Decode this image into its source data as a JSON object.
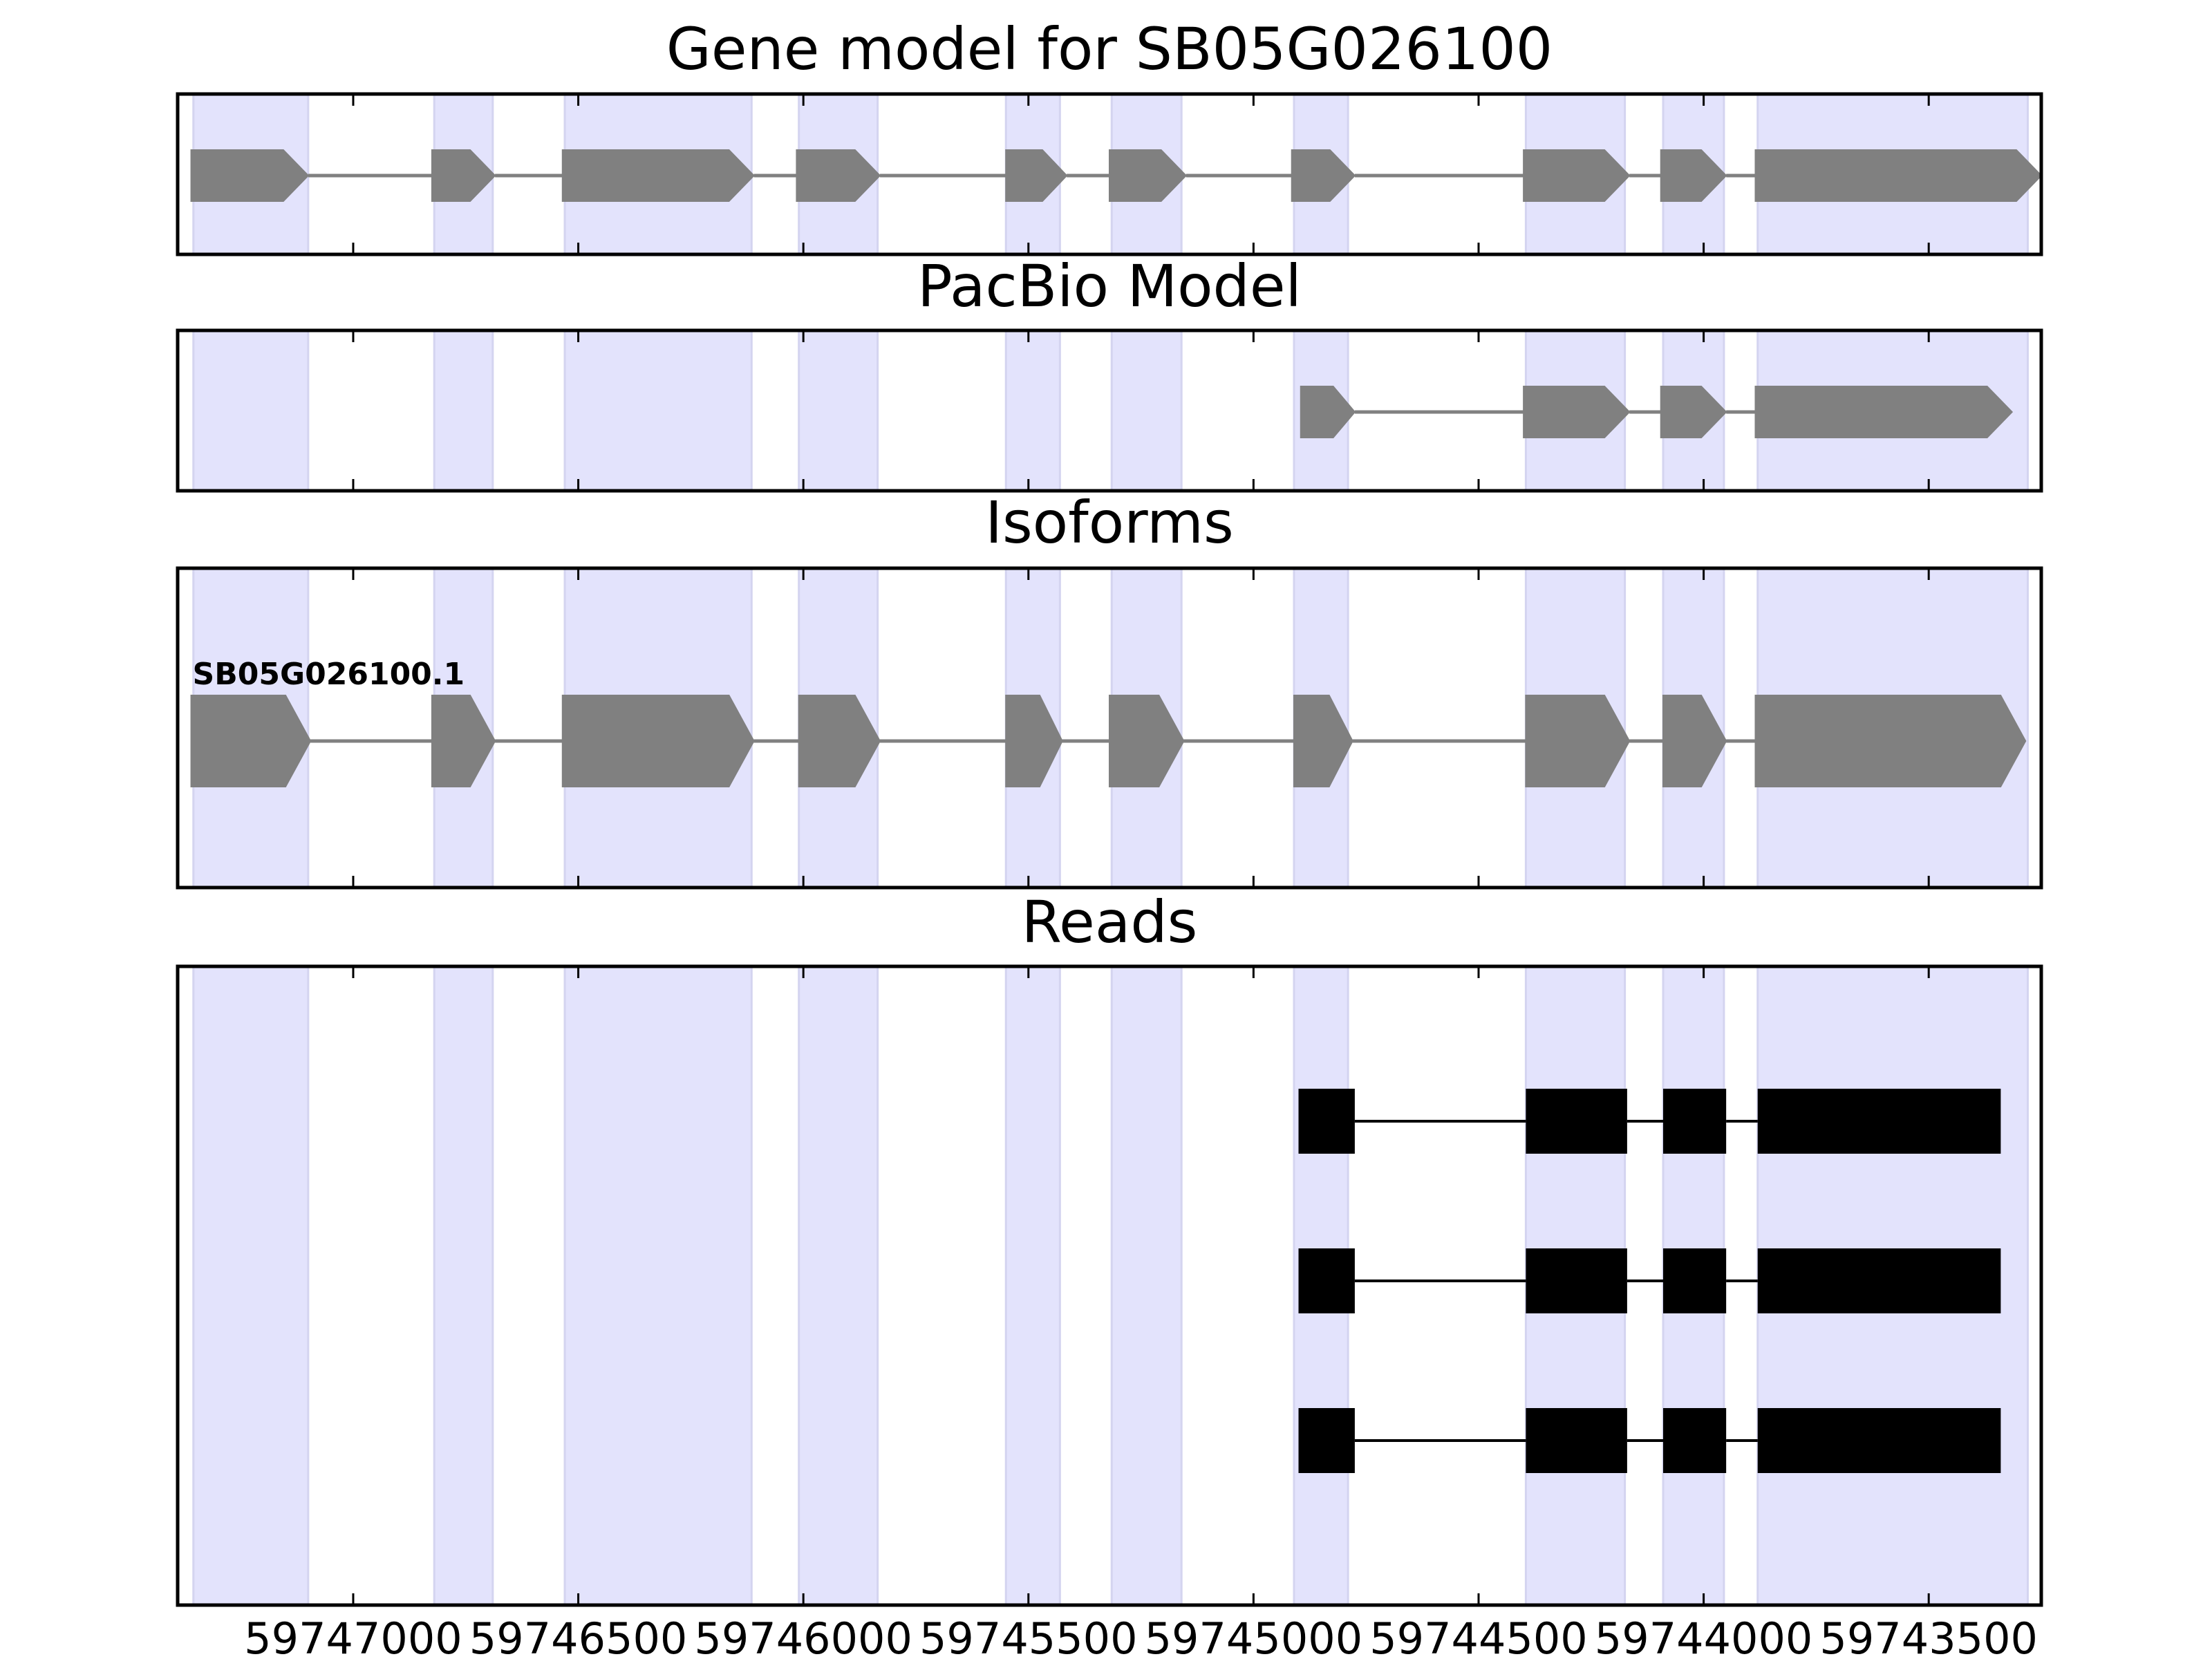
{
  "chart_data": {
    "type": "gene_structure",
    "x_reversed": true,
    "xlim": [
      59747390,
      59743250
    ],
    "x_ticks": [
      59747000,
      59746500,
      59746000,
      59745500,
      59745000,
      59744500,
      59744000,
      59743500
    ],
    "x_tick_labels": [
      "59747000",
      "59746500",
      "59746000",
      "59745500",
      "59745000",
      "59744500",
      "59744000",
      "59743500"
    ],
    "highlight_color": "#e3e3fc",
    "feature_color": "#808080",
    "read_color": "#000000",
    "highlight_exons": [
      [
        59747355,
        59747100
      ],
      [
        59746820,
        59746690
      ],
      [
        59746530,
        59746115
      ],
      [
        59746010,
        59745835
      ],
      [
        59745550,
        59745430
      ],
      [
        59745315,
        59745160
      ],
      [
        59744910,
        59744790
      ],
      [
        59744395,
        59744175
      ],
      [
        59744090,
        59743955
      ],
      [
        59743880,
        59743280
      ]
    ],
    "panels": [
      {
        "title": "Gene model for SB05G026100",
        "models": [
          {
            "label": "",
            "strand": "-",
            "exons": [
              [
                59747360,
                59747100
              ],
              [
                59746825,
                59746685
              ],
              [
                59746535,
                59746110
              ],
              [
                59746015,
                59745830
              ],
              [
                59745550,
                59745415
              ],
              [
                59745320,
                59745150
              ],
              [
                59744915,
                59744775
              ],
              [
                59744400,
                59744165
              ],
              [
                59744095,
                59743950
              ],
              [
                59743885,
                59743250
              ]
            ]
          }
        ]
      },
      {
        "title": "PacBio Model",
        "models": [
          {
            "label": "",
            "strand": "-",
            "exons": [
              [
                59744895,
                59744775
              ],
              [
                59744400,
                59744165
              ],
              [
                59744095,
                59743950
              ],
              [
                59743885,
                59743315
              ]
            ]
          }
        ]
      },
      {
        "title": "Isoforms",
        "models": [
          {
            "label": "SB05G026100.1",
            "strand": "-",
            "exons": [
              [
                59747360,
                59747095
              ],
              [
                59746825,
                59746685
              ],
              [
                59746535,
                59746110
              ],
              [
                59746010,
                59745830
              ],
              [
                59745550,
                59745425
              ],
              [
                59745320,
                59745155
              ],
              [
                59744910,
                59744780
              ],
              [
                59744395,
                59744165
              ],
              [
                59744090,
                59743950
              ],
              [
                59743885,
                59743285
              ]
            ]
          }
        ]
      },
      {
        "title": "Reads",
        "reads": [
          {
            "exons": [
              [
                59744900,
                59744775
              ],
              [
                59744395,
                59744170
              ],
              [
                59744090,
                59743950
              ],
              [
                59743880,
                59743340
              ]
            ]
          },
          {
            "exons": [
              [
                59744900,
                59744775
              ],
              [
                59744395,
                59744170
              ],
              [
                59744090,
                59743950
              ],
              [
                59743880,
                59743340
              ]
            ]
          },
          {
            "exons": [
              [
                59744900,
                59744775
              ],
              [
                59744395,
                59744170
              ],
              [
                59744090,
                59743950
              ],
              [
                59743880,
                59743340
              ]
            ]
          }
        ]
      }
    ]
  }
}
